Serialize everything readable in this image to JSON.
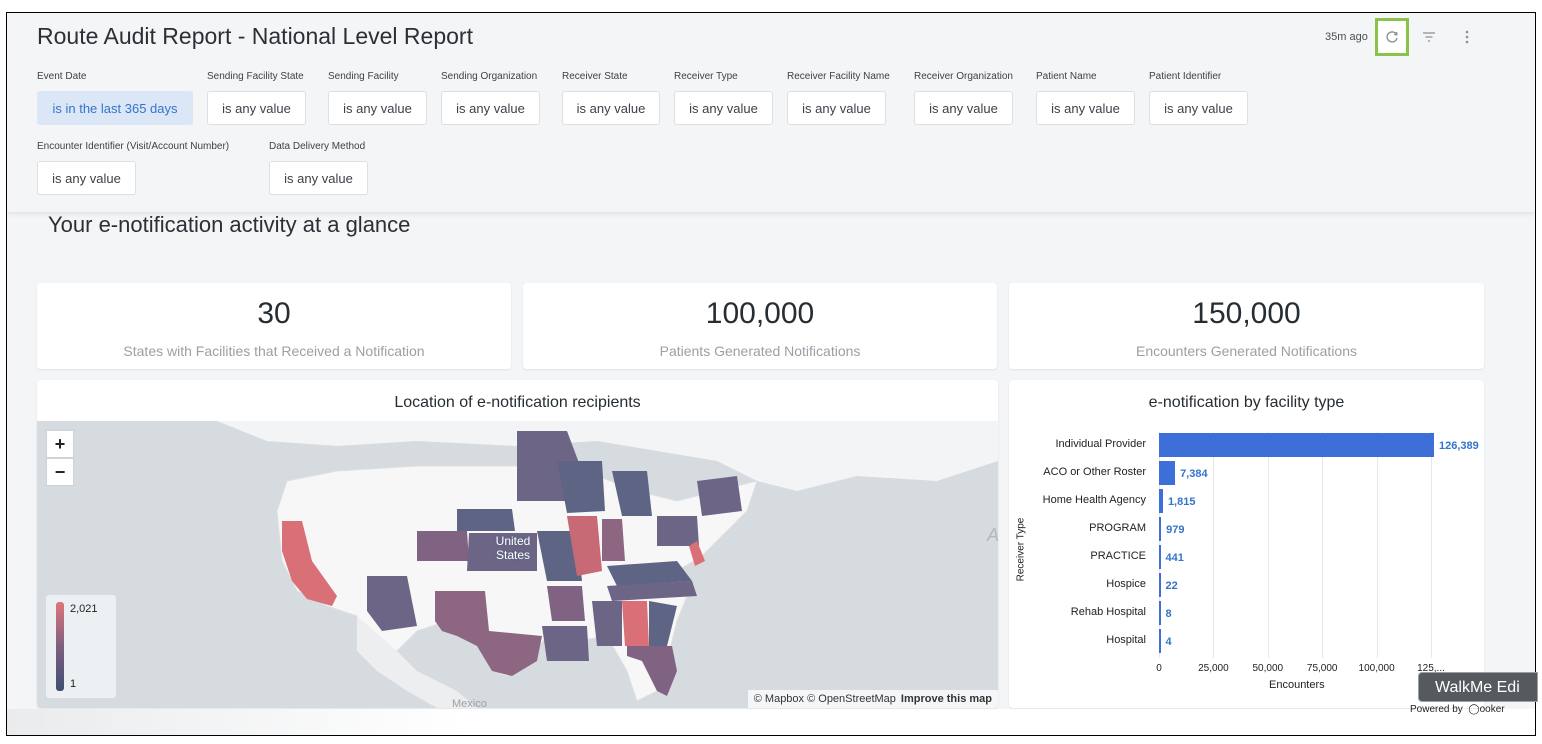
{
  "header": {
    "title": "Route Audit Report - National Level Report",
    "last_refresh": "35m ago",
    "refresh_icon": "refresh-icon",
    "filter_icon": "filter-icon",
    "more_icon": "more-vertical-icon"
  },
  "filters": [
    {
      "label": "Event Date",
      "value": "is in the last 365 days"
    },
    {
      "label": "Sending Facility State",
      "value": "is any value"
    },
    {
      "label": "Sending Facility",
      "value": "is any value"
    },
    {
      "label": "Sending Organization",
      "value": "is any value"
    },
    {
      "label": "Receiver State",
      "value": "is any value"
    },
    {
      "label": "Receiver Type",
      "value": "is any value"
    },
    {
      "label": "Receiver Facility Name",
      "value": "is any value"
    },
    {
      "label": "Receiver Organization",
      "value": "is any value"
    },
    {
      "label": "Patient Name",
      "value": "is any value"
    },
    {
      "label": "Patient Identifier",
      "value": "is any value"
    },
    {
      "label": "Encounter Identifier (Visit/Account Number)",
      "value": "is any value"
    },
    {
      "label": "Data Delivery Method",
      "value": "is any value"
    }
  ],
  "section_title": "Your e-notification activity at a glance",
  "kpis": [
    {
      "value": "30",
      "label": "States with Facilities that Received a Notification"
    },
    {
      "value": "100,000",
      "label": "Patients Generated Notifications"
    },
    {
      "value": "150,000",
      "label": "Encounters Generated Notifications"
    }
  ],
  "map": {
    "title": "Location of e-notification recipients",
    "zoom_in": "+",
    "zoom_out": "−",
    "legend_max": "2,021",
    "legend_min": "1",
    "country_label_1": "United",
    "country_label_2": "States",
    "partial_label_a": "A",
    "partial_label_mexico": "Mexico",
    "attribution": "© Mapbox © OpenStreetMap",
    "improve_link": "Improve this map",
    "colors": {
      "high": "#e0757c",
      "mid": "#7f5f7f",
      "low": "#5e6484"
    }
  },
  "bar_chart": {
    "title": "e-notification by facility type",
    "xlabel_text": "Encounters",
    "ylabel_text": "Receiver Type",
    "tick_labels": [
      "0",
      "25,000",
      "50,000",
      "75,000",
      "100,000",
      "125,..."
    ],
    "value_labels": [
      "126,389",
      "7,384",
      "1,815",
      "979",
      "441",
      "22",
      "8",
      "4"
    ]
  },
  "chart_data": {
    "type": "bar",
    "orientation": "horizontal",
    "title": "e-notification by facility type",
    "xlabel": "Encounters",
    "ylabel": "Receiver Type",
    "categories": [
      "Individual Provider",
      "ACO or Other Roster",
      "Home Health Agency",
      "PROGRAM",
      "PRACTICE",
      "Hospice",
      "Rehab Hospital",
      "Hospital"
    ],
    "values": [
      126389,
      7384,
      1815,
      979,
      441,
      22,
      8,
      4
    ],
    "xlim": [
      0,
      125000
    ],
    "xticks": [
      0,
      25000,
      50000,
      75000,
      100000,
      125000
    ],
    "grid": true,
    "color": "#3e6fd8"
  },
  "footer": {
    "walkme": "WalkMe Edi",
    "powered_by": "Powered by",
    "brand": "ooker"
  }
}
